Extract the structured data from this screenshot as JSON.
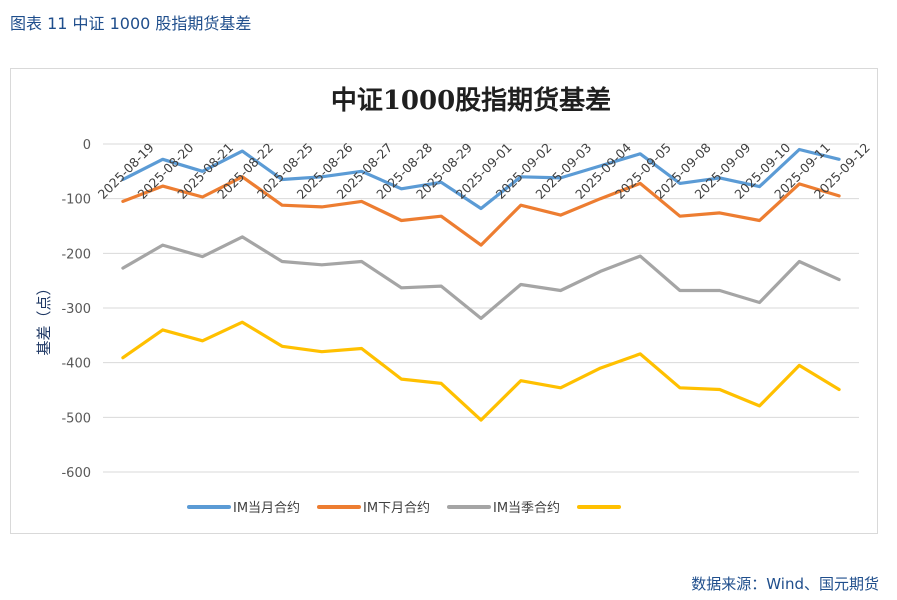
{
  "figure": {
    "caption": "图表 11  中证 1000 股指期货基差",
    "source": "数据来源：Wind、国元期货"
  },
  "chart_data": {
    "type": "line",
    "title": "中证1000股指期货基差",
    "ylabel": "基差（点）",
    "xlabel": "",
    "ylim": [
      -600,
      0
    ],
    "yticks": [
      0,
      -100,
      -200,
      -300,
      -400,
      -500,
      -600
    ],
    "grid": true,
    "legend_position": "bottom",
    "x": [
      "2025-08-19",
      "2025-08-20",
      "2025-08-21",
      "2025-08-22",
      "2025-08-25",
      "2025-08-26",
      "2025-08-27",
      "2025-08-28",
      "2025-08-29",
      "2025-09-01",
      "2025-09-02",
      "2025-09-03",
      "2025-09-04",
      "2025-09-05",
      "2025-09-08",
      "2025-09-09",
      "2025-09-10",
      "2025-09-11",
      "2025-09-12"
    ],
    "series": [
      {
        "name": "IM当月合约",
        "color": "#5b9bd5",
        "values": [
          -65,
          -28,
          -50,
          -13,
          -65,
          -60,
          -50,
          -82,
          -70,
          -118,
          -60,
          -62,
          -40,
          -18,
          -72,
          -62,
          -78,
          -10,
          -28
        ]
      },
      {
        "name": "IM下月合约",
        "color": "#ed7d31",
        "values": [
          -105,
          -77,
          -97,
          -60,
          -112,
          -115,
          -105,
          -140,
          -132,
          -185,
          -112,
          -130,
          -100,
          -72,
          -132,
          -126,
          -140,
          -73,
          -95
        ]
      },
      {
        "name": "IM当季合约",
        "color": "#a5a5a5",
        "values": [
          -227,
          -185,
          -206,
          -170,
          -215,
          -221,
          -215,
          -263,
          -260,
          -319,
          -257,
          -268,
          -233,
          -205,
          -268,
          -268,
          -290,
          -215,
          -248
        ]
      },
      {
        "name": "",
        "color": "#ffc000",
        "values": [
          -391,
          -340,
          -360,
          -326,
          -370,
          -380,
          -374,
          -430,
          -438,
          -505,
          -433,
          -446,
          -410,
          -384,
          -446,
          -449,
          -479,
          -405,
          -449
        ]
      }
    ]
  }
}
